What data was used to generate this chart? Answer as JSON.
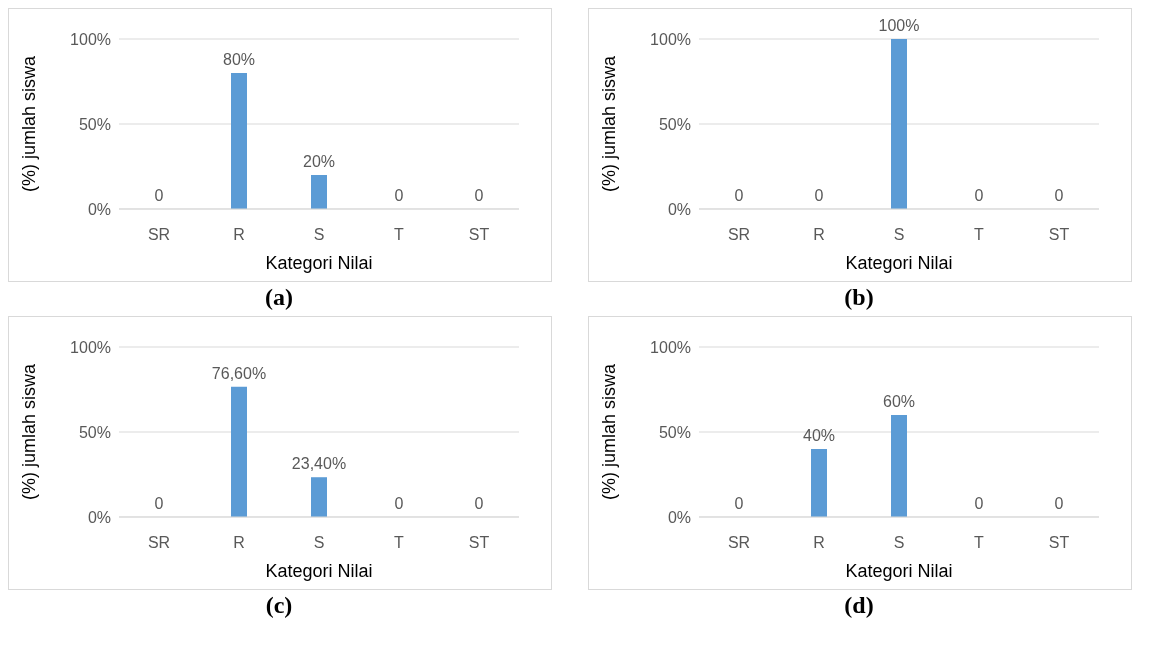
{
  "chart_data": [
    {
      "type": "bar",
      "categories": [
        "SR",
        "R",
        "S",
        "T",
        "ST"
      ],
      "values": [
        0,
        80,
        20,
        0,
        0
      ],
      "value_labels": [
        "0",
        "80%",
        "20%",
        "0",
        "0"
      ],
      "color": "#5b9bd5",
      "ylim": [
        0,
        100
      ],
      "yticks": [
        {
          "value": 0,
          "label": "0%"
        },
        {
          "value": 50,
          "label": "50%"
        },
        {
          "value": 100,
          "label": "100%"
        }
      ],
      "grid": "y",
      "xlabel": "Kategori Nilai",
      "ylabel": "(%) jumlah siswa",
      "annotations": [
        "(a)"
      ]
    },
    {
      "type": "bar",
      "categories": [
        "SR",
        "R",
        "S",
        "T",
        "ST"
      ],
      "values": [
        0,
        0,
        100,
        0,
        0
      ],
      "value_labels": [
        "0",
        "0",
        "100%",
        "0",
        "0"
      ],
      "color": "#5b9bd5",
      "ylim": [
        0,
        100
      ],
      "yticks": [
        {
          "value": 0,
          "label": "0%"
        },
        {
          "value": 50,
          "label": "50%"
        },
        {
          "value": 100,
          "label": "100%"
        }
      ],
      "grid": "y",
      "xlabel": "Kategori Nilai",
      "ylabel": "(%) jumlah siswa",
      "annotations": [
        "(b)"
      ]
    },
    {
      "type": "bar",
      "categories": [
        "SR",
        "R",
        "S",
        "T",
        "ST"
      ],
      "values": [
        0,
        76.6,
        23.4,
        0,
        0
      ],
      "value_labels": [
        "0",
        "76,60%",
        "23,40%",
        "0",
        "0"
      ],
      "color": "#5b9bd5",
      "ylim": [
        0,
        100
      ],
      "yticks": [
        {
          "value": 0,
          "label": "0%"
        },
        {
          "value": 50,
          "label": "50%"
        },
        {
          "value": 100,
          "label": "100%"
        }
      ],
      "grid": "y",
      "xlabel": "Kategori Nilai",
      "ylabel": "(%) jumlah siswa",
      "annotations": [
        "(c)"
      ]
    },
    {
      "type": "bar",
      "categories": [
        "SR",
        "R",
        "S",
        "T",
        "ST"
      ],
      "values": [
        0,
        40,
        60,
        0,
        0
      ],
      "value_labels": [
        "0",
        "40%",
        "60%",
        "0",
        "0"
      ],
      "color": "#5b9bd5",
      "ylim": [
        0,
        100
      ],
      "yticks": [
        {
          "value": 0,
          "label": "0%"
        },
        {
          "value": 50,
          "label": "50%"
        },
        {
          "value": 100,
          "label": "100%"
        }
      ],
      "grid": "y",
      "xlabel": "Kategori Nilai",
      "ylabel": "(%) jumlah siswa",
      "annotations": [
        "(d)"
      ]
    }
  ]
}
